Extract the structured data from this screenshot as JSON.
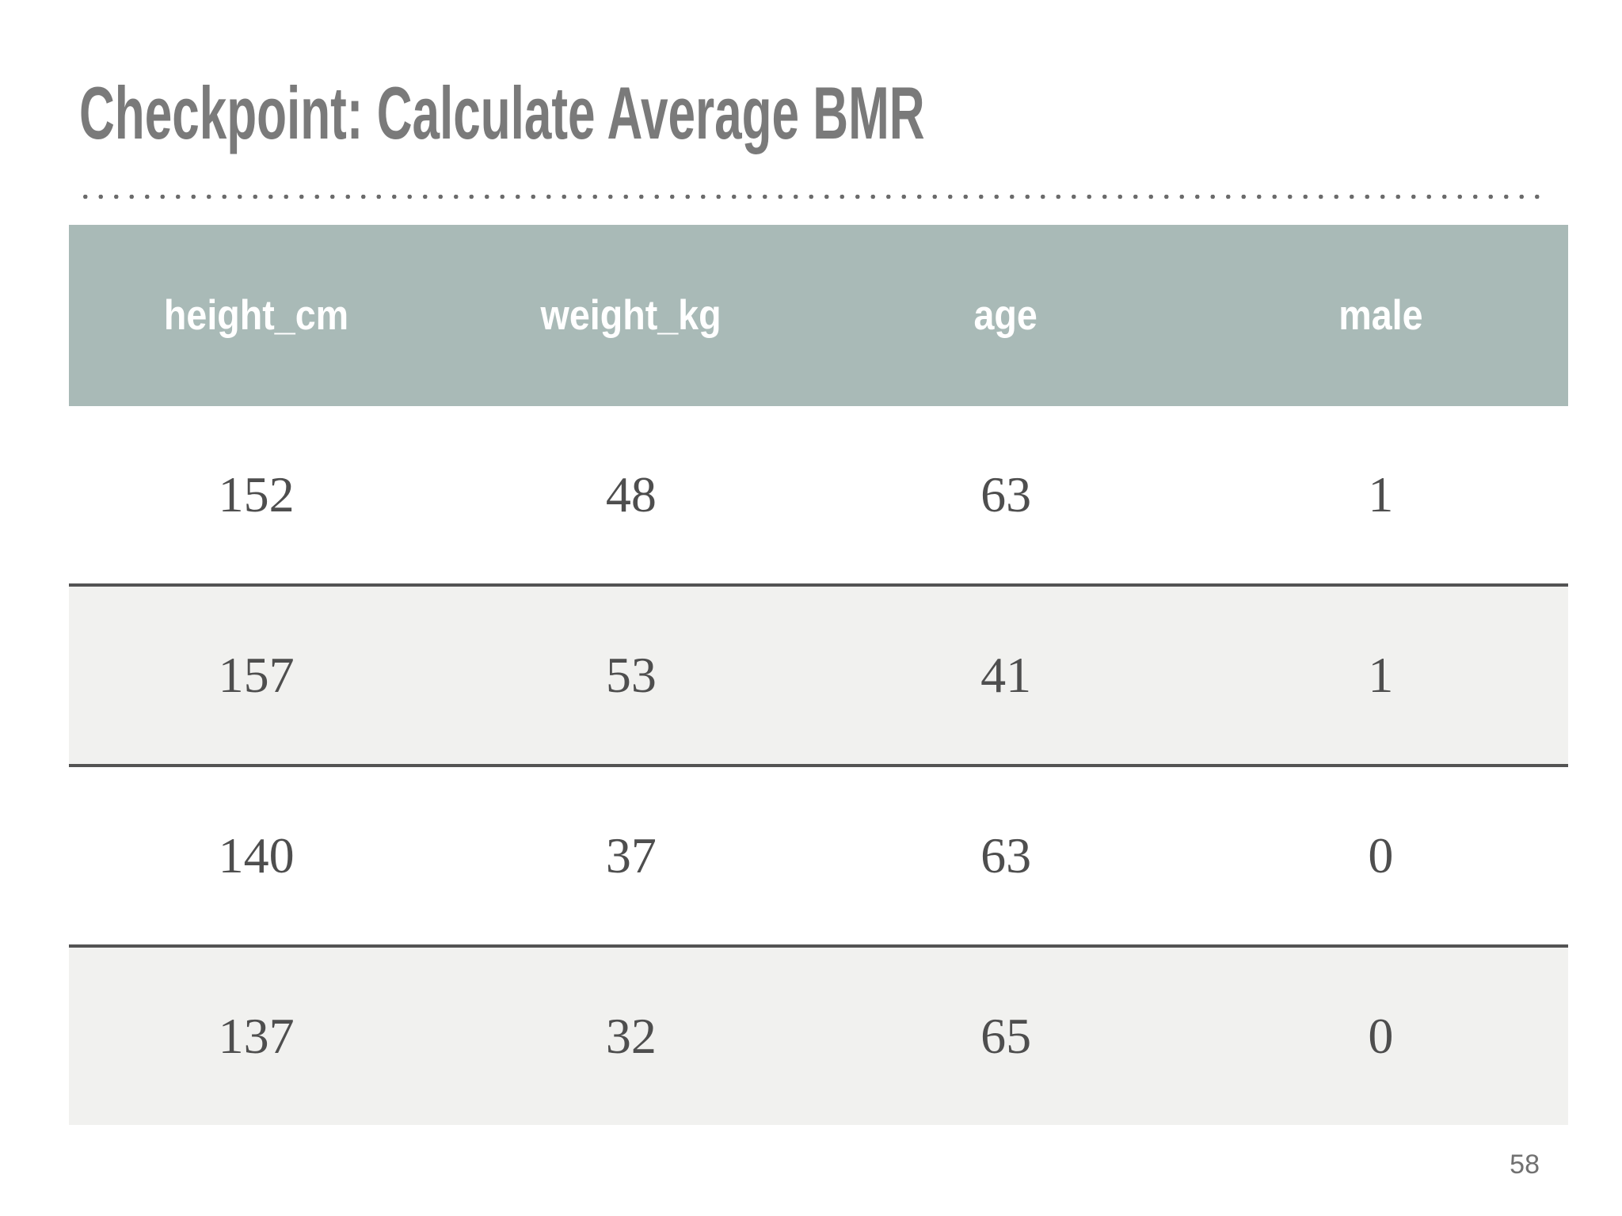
{
  "slide": {
    "title": "Checkpoint: Calculate Average BMR",
    "page_number": "58"
  },
  "table": {
    "columns": [
      "height_cm",
      "weight_kg",
      "age",
      "male"
    ],
    "rows": [
      [
        "152",
        "48",
        "63",
        "1"
      ],
      [
        "157",
        "53",
        "41",
        "1"
      ],
      [
        "140",
        "37",
        "63",
        "0"
      ],
      [
        "137",
        "32",
        "65",
        "0"
      ]
    ]
  },
  "chart_data": {
    "type": "table",
    "title": "Checkpoint: Calculate Average BMR",
    "columns": [
      "height_cm",
      "weight_kg",
      "age",
      "male"
    ],
    "rows": [
      [
        152,
        48,
        63,
        1
      ],
      [
        157,
        53,
        41,
        1
      ],
      [
        140,
        37,
        63,
        0
      ],
      [
        137,
        32,
        65,
        0
      ]
    ]
  },
  "colors": {
    "header-bg": "#a9bab7",
    "header-text": "#ffffff",
    "row-alt-bg": "#f1f1ef",
    "row-border": "#535353",
    "title-text": "#7a7a7a",
    "cell-text": "#4e4e4e",
    "dot": "#6b6b6b",
    "page-number-text": "#717171"
  }
}
